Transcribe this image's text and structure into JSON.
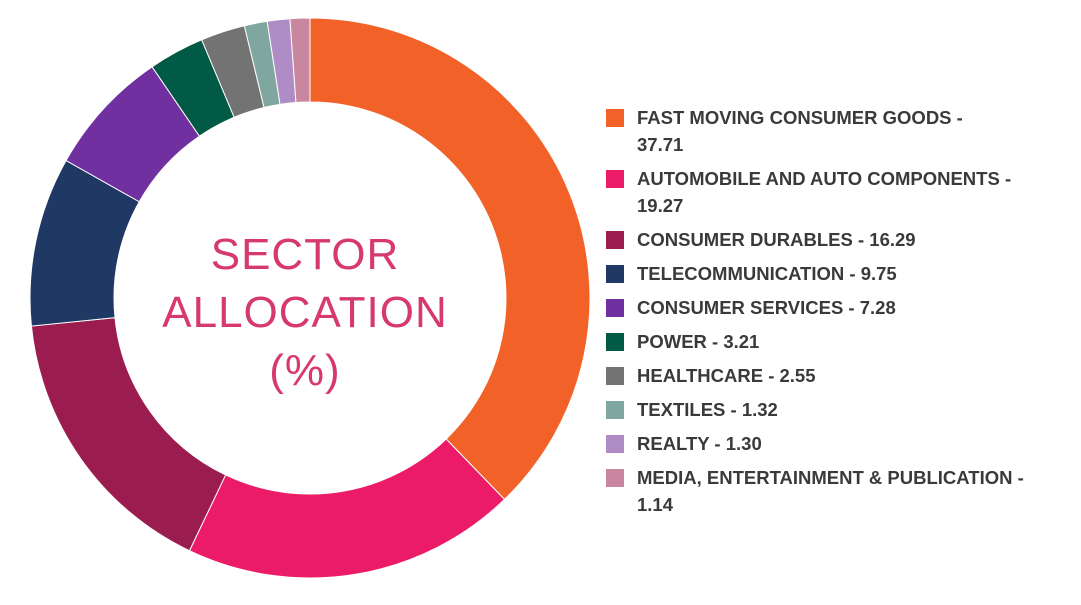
{
  "chart_data": {
    "type": "pie",
    "title": "SECTOR ALLOCATION (%)",
    "categories": [
      "FAST MOVING CONSUMER GOODS",
      "AUTOMOBILE AND AUTO COMPONENTS",
      "CONSUMER DURABLES",
      "TELECOMMUNICATION",
      "CONSUMER SERVICES",
      "POWER",
      "HEALTHCARE",
      "TEXTILES",
      "REALTY",
      "MEDIA, ENTERTAINMENT & PUBLICATION"
    ],
    "values": [
      37.71,
      19.27,
      16.29,
      9.75,
      7.28,
      3.21,
      2.55,
      1.32,
      1.3,
      1.14
    ],
    "colors": [
      "#f26127",
      "#ec1b67",
      "#9b1c4f",
      "#1f3864",
      "#7030a0",
      "#005a46",
      "#737373",
      "#7fa79f",
      "#b08cc6",
      "#c9869f"
    ],
    "legend_position": "right",
    "donut": true
  },
  "center_label": {
    "line1": "SECTOR",
    "line2": "ALLOCATION",
    "line3": "(%)"
  },
  "legend": {
    "items": [
      {
        "label": "FAST MOVING CONSUMER GOODS -\n37.71",
        "color": "#f26127"
      },
      {
        "label": "AUTOMOBILE AND AUTO COMPONENTS -\n19.27",
        "color": "#ec1b67"
      },
      {
        "label": "CONSUMER DURABLES - 16.29",
        "color": "#9b1c4f"
      },
      {
        "label": "TELECOMMUNICATION - 9.75",
        "color": "#1f3864"
      },
      {
        "label": "CONSUMER SERVICES - 7.28",
        "color": "#7030a0"
      },
      {
        "label": "POWER - 3.21",
        "color": "#005a46"
      },
      {
        "label": "HEALTHCARE - 2.55",
        "color": "#737373"
      },
      {
        "label": "TEXTILES - 1.32",
        "color": "#7fa79f"
      },
      {
        "label": "REALTY - 1.30",
        "color": "#b08cc6"
      },
      {
        "label": "MEDIA, ENTERTAINMENT & PUBLICATION -\n1.14",
        "color": "#c9869f"
      }
    ]
  }
}
